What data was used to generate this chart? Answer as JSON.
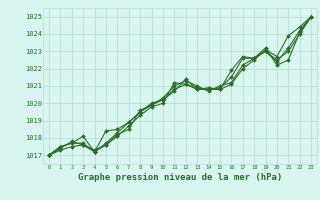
{
  "bg_color": "#d8f5ef",
  "grid_color": "#b8ddd5",
  "line_color": "#2a6e2a",
  "marker_color": "#2a6e2a",
  "xlabel": "Graphe pression niveau de la mer (hPa)",
  "xlabel_fontsize": 6.5,
  "ylim": [
    1016.5,
    1025.5
  ],
  "xlim": [
    -0.5,
    23.5
  ],
  "yticks": [
    1017,
    1018,
    1019,
    1020,
    1021,
    1022,
    1023,
    1024,
    1025
  ],
  "xticks": [
    0,
    1,
    2,
    3,
    4,
    5,
    6,
    7,
    8,
    9,
    10,
    11,
    12,
    13,
    14,
    15,
    16,
    17,
    18,
    19,
    20,
    21,
    22,
    23
  ],
  "series": [
    [
      1017.0,
      1017.3,
      1017.5,
      1017.6,
      1017.2,
      1017.6,
      1018.1,
      1018.7,
      1019.3,
      1019.8,
      1020.0,
      1021.2,
      1021.1,
      1020.8,
      1020.8,
      1020.8,
      1021.1,
      1022.0,
      1022.5,
      1023.1,
      1022.7,
      1023.9,
      1024.4,
      1025.0
    ],
    [
      1017.0,
      1017.4,
      1017.8,
      1017.6,
      1017.3,
      1017.6,
      1018.2,
      1018.5,
      1019.6,
      1019.9,
      1020.3,
      1021.0,
      1021.3,
      1021.0,
      1020.7,
      1021.0,
      1021.2,
      1022.2,
      1022.6,
      1023.2,
      1022.2,
      1022.5,
      1024.1,
      1025.0
    ],
    [
      1017.0,
      1017.5,
      1017.7,
      1018.1,
      1017.2,
      1018.4,
      1018.5,
      1018.9,
      1019.5,
      1020.0,
      1020.2,
      1020.7,
      1021.4,
      1020.8,
      1020.9,
      1020.8,
      1021.9,
      1022.7,
      1022.6,
      1023.0,
      1022.5,
      1023.0,
      1024.0,
      1025.0
    ],
    [
      1017.0,
      1017.5,
      1017.7,
      1017.7,
      1017.2,
      1017.7,
      1018.3,
      1018.9,
      1019.5,
      1019.9,
      1020.2,
      1020.8,
      1021.1,
      1020.9,
      1020.8,
      1020.9,
      1021.5,
      1022.6,
      1022.6,
      1023.0,
      1022.4,
      1023.2,
      1024.2,
      1025.0
    ]
  ]
}
